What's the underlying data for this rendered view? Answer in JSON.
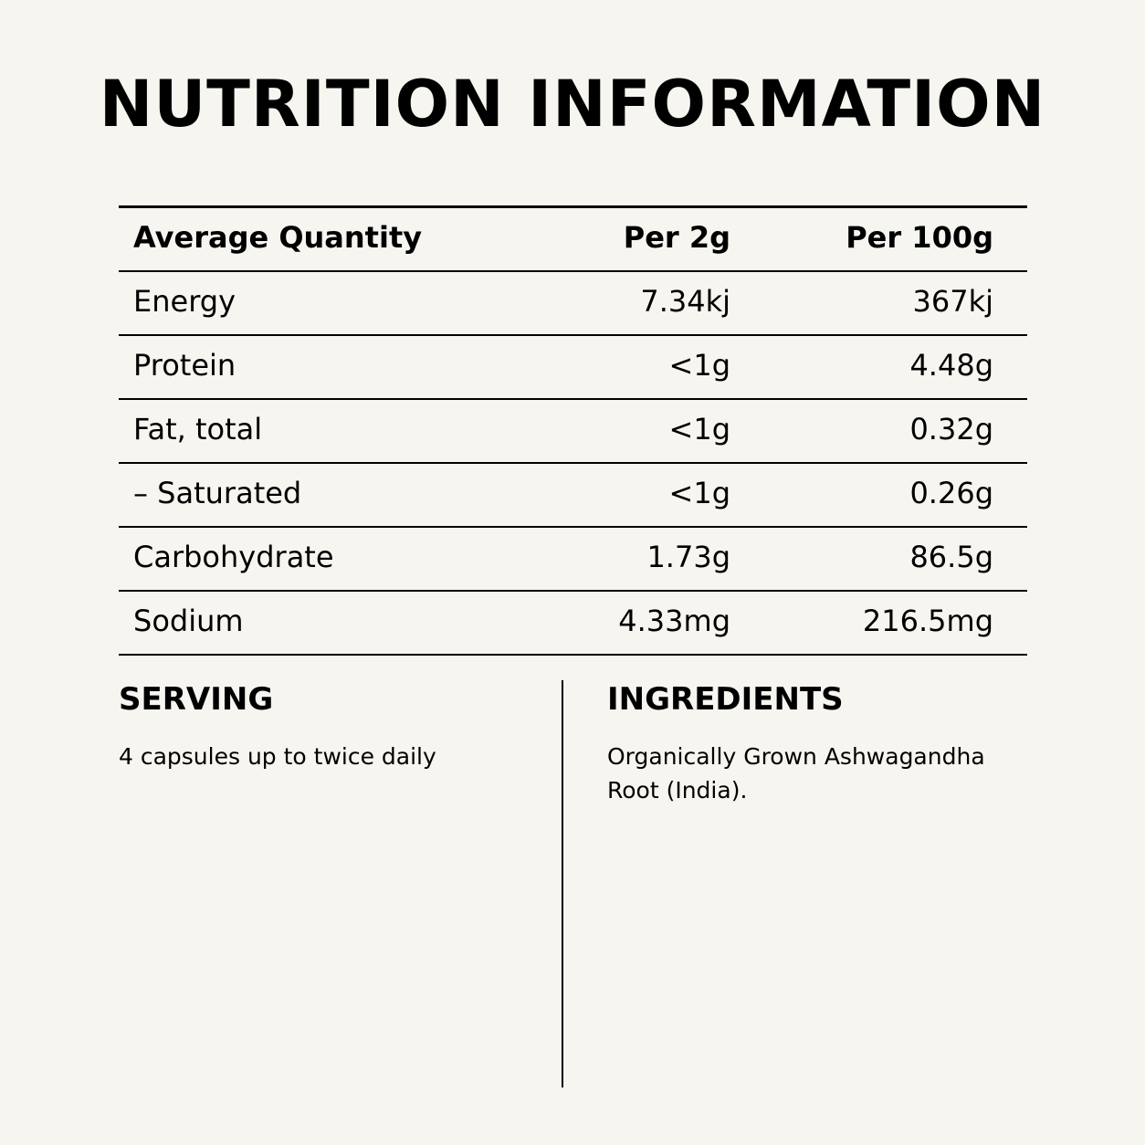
{
  "title": "NUTRITION INFORMATION",
  "table": {
    "headers": [
      "Average Quantity",
      "Per 2g",
      "Per 100g"
    ],
    "rows": [
      [
        "Energy",
        "7.34kj",
        "367kj"
      ],
      [
        "Protein",
        "<1g",
        "4.48g"
      ],
      [
        "Fat, total",
        "<1g",
        "0.32g"
      ],
      [
        "– Saturated",
        "<1g",
        "0.26g"
      ],
      [
        "Carbohydrate",
        "1.73g",
        "86.5g"
      ],
      [
        "Sodium",
        "4.33mg",
        "216.5mg"
      ]
    ]
  },
  "serving": {
    "title": "SERVING",
    "text": "4 capsules up to twice daily"
  },
  "ingredients": {
    "title": "INGREDIENTS",
    "text": "Organically Grown Ashwagandha Root (India)."
  }
}
